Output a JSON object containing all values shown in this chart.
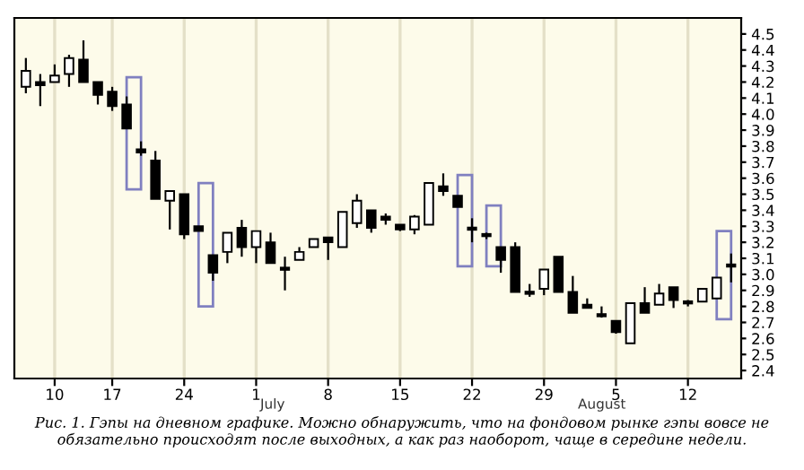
{
  "chart_data": {
    "type": "candlestick",
    "categories": [
      null,
      null,
      "10",
      null,
      null,
      null,
      "17",
      null,
      null,
      null,
      null,
      "24",
      null,
      null,
      null,
      null,
      "1",
      null,
      null,
      null,
      null,
      "8",
      null,
      null,
      null,
      null,
      "15",
      null,
      null,
      null,
      null,
      "22",
      null,
      null,
      null,
      null,
      "29",
      null,
      null,
      null,
      null,
      "5",
      null,
      null,
      null,
      null,
      "12",
      null,
      null,
      null
    ],
    "ohlc": [
      [
        4.17,
        4.35,
        4.13,
        4.27
      ],
      [
        4.2,
        4.25,
        4.05,
        4.18
      ],
      [
        4.2,
        4.31,
        4.2,
        4.24
      ],
      [
        4.25,
        4.37,
        4.17,
        4.35
      ],
      [
        4.34,
        4.46,
        4.2,
        4.2
      ],
      [
        4.2,
        4.2,
        4.06,
        4.12
      ],
      [
        4.14,
        4.17,
        4.02,
        4.05
      ],
      [
        4.06,
        4.11,
        3.91,
        3.91
      ],
      [
        3.78,
        3.83,
        3.74,
        3.76
      ],
      [
        3.71,
        3.77,
        3.47,
        3.47
      ],
      [
        3.46,
        3.52,
        3.28,
        3.52
      ],
      [
        3.5,
        3.5,
        3.22,
        3.25
      ],
      [
        3.3,
        3.3,
        3.27,
        3.27
      ],
      [
        3.12,
        3.12,
        2.96,
        3.01
      ],
      [
        3.14,
        3.26,
        3.07,
        3.26
      ],
      [
        3.29,
        3.34,
        3.11,
        3.17
      ],
      [
        3.17,
        3.27,
        3.07,
        3.27
      ],
      [
        3.2,
        3.26,
        3.07,
        3.07
      ],
      [
        3.04,
        3.11,
        2.9,
        3.03
      ],
      [
        3.09,
        3.17,
        3.09,
        3.14
      ],
      [
        3.17,
        3.22,
        3.17,
        3.22
      ],
      [
        3.23,
        3.23,
        3.09,
        3.2
      ],
      [
        3.17,
        3.39,
        3.17,
        3.39
      ],
      [
        3.32,
        3.5,
        3.29,
        3.46
      ],
      [
        3.4,
        3.4,
        3.26,
        3.29
      ],
      [
        3.36,
        3.38,
        3.31,
        3.34
      ],
      [
        3.31,
        3.31,
        3.27,
        3.28
      ],
      [
        3.28,
        3.37,
        3.25,
        3.36
      ],
      [
        3.31,
        3.57,
        3.31,
        3.57
      ],
      [
        3.55,
        3.63,
        3.49,
        3.52
      ],
      [
        3.49,
        3.49,
        3.42,
        3.42
      ],
      [
        3.29,
        3.35,
        3.2,
        3.28
      ],
      [
        3.25,
        3.26,
        3.22,
        3.24
      ],
      [
        3.17,
        3.17,
        3.01,
        3.09
      ],
      [
        3.17,
        3.2,
        2.89,
        2.89
      ],
      [
        2.89,
        2.94,
        2.86,
        2.88
      ],
      [
        2.91,
        3.03,
        2.87,
        3.03
      ],
      [
        3.11,
        3.11,
        2.89,
        2.89
      ],
      [
        2.89,
        2.99,
        2.76,
        2.76
      ],
      [
        2.81,
        2.85,
        2.79,
        2.79
      ],
      [
        2.75,
        2.8,
        2.73,
        2.74
      ],
      [
        2.71,
        2.71,
        2.63,
        2.64
      ],
      [
        2.57,
        2.82,
        2.57,
        2.82
      ],
      [
        2.82,
        2.92,
        2.76,
        2.76
      ],
      [
        2.81,
        2.94,
        2.81,
        2.88
      ],
      [
        2.92,
        2.92,
        2.79,
        2.84
      ],
      [
        2.83,
        2.84,
        2.8,
        2.82
      ],
      [
        2.83,
        2.91,
        2.83,
        2.91
      ],
      [
        2.85,
        2.98,
        2.85,
        2.98
      ],
      [
        3.06,
        3.13,
        2.95,
        3.05
      ]
    ],
    "series": [
      {
        "type": "bar",
        "color": "#8080c0",
        "base": [
          null,
          null,
          null,
          null,
          null,
          null,
          null,
          null,
          3.53,
          null,
          null,
          null,
          null,
          2.8,
          null,
          null,
          null,
          null,
          null,
          null,
          null,
          null,
          null,
          null,
          null,
          null,
          null,
          null,
          null,
          null,
          null,
          3.05,
          null,
          3.05,
          null,
          null,
          null,
          null,
          null,
          null,
          null,
          null,
          null,
          null,
          null,
          null,
          null,
          null,
          null,
          2.72
        ],
        "values": [
          null,
          null,
          null,
          null,
          null,
          null,
          null,
          null,
          0.7,
          null,
          null,
          null,
          null,
          0.77,
          null,
          null,
          null,
          null,
          null,
          null,
          null,
          null,
          null,
          null,
          null,
          null,
          null,
          null,
          null,
          null,
          null,
          0.57,
          null,
          0.38,
          null,
          null,
          null,
          null,
          null,
          null,
          null,
          null,
          null,
          null,
          null,
          null,
          null,
          null,
          null,
          0.55
        ]
      }
    ],
    "ylim": [
      2.35,
      4.6
    ],
    "yticks": [
      2.4,
      2.5,
      2.6,
      2.7,
      2.8,
      2.9,
      {
        "value": 3,
        "label": "3.0"
      },
      3.1,
      3.2,
      3.3,
      3.4,
      3.5,
      3.6,
      3.7,
      3.8,
      3.9,
      {
        "value": 4,
        "label": "4.0"
      },
      4.1,
      4.2,
      4.3,
      4.4,
      4.5
    ],
    "grid": "x",
    "annotations": [
      "July",
      "August",
      "Рис. 1. Гэпы на дневном графике. Можно обнаружить, что на фондовом рынке гэпы вовсе не обязательно происходят после выходных, а как раз наоборот, чаще в середине недели."
    ]
  }
}
